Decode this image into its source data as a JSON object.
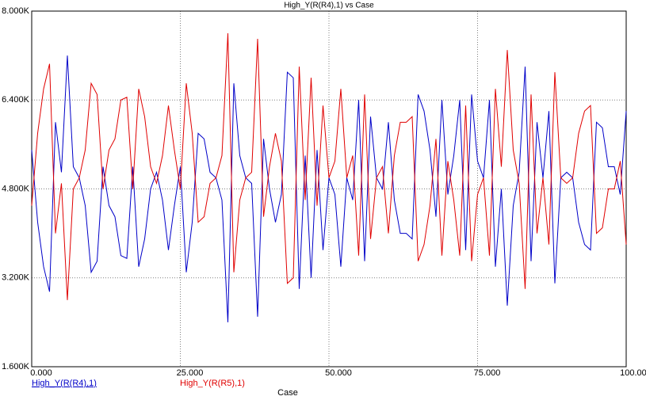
{
  "chart_data": {
    "type": "line",
    "title": "High_Y(R(R4),1) vs Case",
    "x_label": "Case",
    "x": [
      0,
      1,
      2,
      3,
      4,
      5,
      6,
      7,
      8,
      9,
      10,
      11,
      12,
      13,
      14,
      15,
      16,
      17,
      18,
      19,
      20,
      21,
      22,
      23,
      24,
      25,
      26,
      27,
      28,
      29,
      30,
      31,
      32,
      33,
      34,
      35,
      36,
      37,
      38,
      39,
      40,
      41,
      42,
      43,
      44,
      45,
      46,
      47,
      48,
      49,
      50,
      51,
      52,
      53,
      54,
      55,
      56,
      57,
      58,
      59,
      60,
      61,
      62,
      63,
      64,
      65,
      66,
      67,
      68,
      69,
      70,
      71,
      72,
      73,
      74,
      75,
      76,
      77,
      78,
      79,
      80,
      81,
      82,
      83,
      84,
      85,
      86,
      87,
      88,
      89,
      90,
      91,
      92,
      93,
      94,
      95,
      96,
      97,
      98,
      99,
      100
    ],
    "series": [
      {
        "name": "High_Y(R(R4),1)",
        "color": "#0000c8",
        "values": [
          5500,
          4200,
          3400,
          2950,
          6000,
          5100,
          7200,
          5200,
          5000,
          4500,
          3300,
          3500,
          5200,
          4500,
          4300,
          3600,
          3550,
          5200,
          3400,
          3900,
          4800,
          5100,
          4600,
          3700,
          4500,
          5200,
          3300,
          4200,
          5800,
          5700,
          5100,
          5000,
          4600,
          2400,
          6700,
          5400,
          5000,
          4900,
          2500,
          5700,
          4800,
          4200,
          4700,
          6900,
          6800,
          3000,
          5400,
          3200,
          5500,
          3700,
          5000,
          4700,
          3400,
          5000,
          4600,
          6400,
          3500,
          6100,
          5000,
          4800,
          6000,
          4600,
          4000,
          4000,
          3900,
          6500,
          6200,
          5500,
          4300,
          6400,
          4700,
          5400,
          6400,
          3700,
          6500,
          5300,
          5000,
          6400,
          3400,
          4800,
          2700,
          4500,
          5100,
          7000,
          3500,
          6000,
          5000,
          6200,
          3100,
          5000,
          5100,
          5000,
          4200,
          3800,
          3700,
          6000,
          5900,
          5200,
          5200,
          4700,
          6200
        ]
      },
      {
        "name": "High_Y(R(R5),1)",
        "color": "#e00000",
        "values": [
          4500,
          5800,
          6600,
          7050,
          4000,
          4900,
          2800,
          4800,
          5000,
          5500,
          6700,
          6500,
          4800,
          5500,
          5700,
          6400,
          6450,
          4800,
          6600,
          6100,
          5200,
          4900,
          5400,
          6300,
          5500,
          4800,
          6700,
          5800,
          4200,
          4300,
          4900,
          5000,
          5400,
          7600,
          3300,
          4600,
          5000,
          5100,
          7500,
          4300,
          5200,
          5800,
          5300,
          3100,
          3200,
          7000,
          4600,
          6800,
          4500,
          6300,
          5000,
          5300,
          6600,
          5000,
          5400,
          3600,
          6500,
          3900,
          5000,
          5200,
          4000,
          5400,
          6000,
          6000,
          6100,
          3500,
          3800,
          4500,
          5700,
          3600,
          5300,
          4600,
          3600,
          6300,
          3500,
          4700,
          5000,
          3600,
          6600,
          5200,
          7300,
          5500,
          4900,
          3000,
          6500,
          4000,
          5000,
          3800,
          6900,
          5000,
          4900,
          5000,
          5800,
          6200,
          6300,
          4000,
          4100,
          4800,
          4800,
          5300,
          3800
        ]
      }
    ],
    "xlim": [
      0,
      100
    ],
    "xticks": [
      {
        "value": 0,
        "label": "0.000"
      },
      {
        "value": 25,
        "label": "25.000"
      },
      {
        "value": 50,
        "label": "50.000"
      },
      {
        "value": 75,
        "label": "75.000"
      },
      {
        "value": 100,
        "label": "100.000"
      }
    ],
    "ylim": [
      1600,
      8000
    ],
    "yticks": [
      {
        "value": 1600,
        "label": "1.600K"
      },
      {
        "value": 3200,
        "label": "3.200K"
      },
      {
        "value": 4800,
        "label": "4.800K"
      },
      {
        "value": 6400,
        "label": "6.400K"
      },
      {
        "value": 8000,
        "label": "8.000K"
      }
    ],
    "grid": true
  }
}
